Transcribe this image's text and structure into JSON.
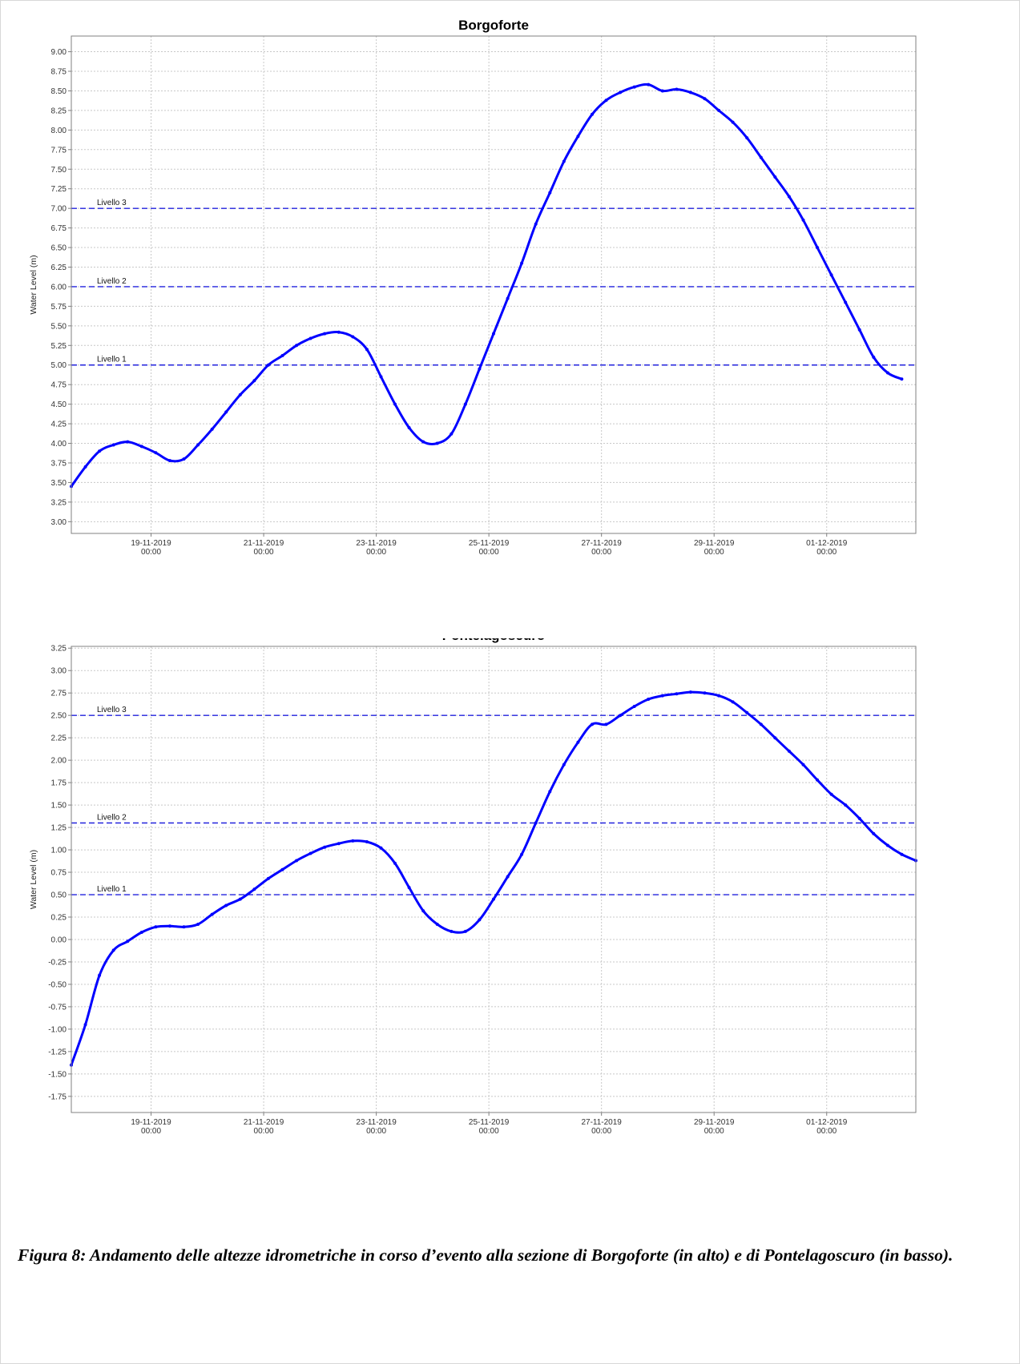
{
  "caption": "Figura 8: Andamento delle altezze idrometriche in corso d’evento alla sezione di Borgoforte (in alto) e di Pontelagoscuro (in basso).",
  "chart_data": [
    {
      "type": "line",
      "title": "Borgoforte",
      "ylabel": "Water Level (m)",
      "xlabel": "",
      "ylim": [
        2.85,
        9.2
      ],
      "yticks": [
        3.0,
        3.25,
        3.5,
        3.75,
        4.0,
        4.25,
        4.5,
        4.75,
        5.0,
        5.25,
        5.5,
        5.75,
        6.0,
        6.25,
        6.5,
        6.75,
        7.0,
        7.25,
        7.5,
        7.75,
        8.0,
        8.25,
        8.5,
        8.75,
        9.0
      ],
      "ytick_labels": [
        "3.00",
        "3.25",
        "3.50",
        "3.75",
        "4.00",
        "4.25",
        "4.50",
        "4.75",
        "5.00",
        "5.25",
        "5.50",
        "5.75",
        "6.00",
        "6.25",
        "6.50",
        "6.75",
        "7.00",
        "7.25",
        "7.50",
        "7.75",
        "8.00",
        "8.25",
        "8.50",
        "8.75",
        "9.00"
      ],
      "xlim": [
        "2019-11-17T14:00",
        "2019-12-02T14:00"
      ],
      "xticks": [
        "2019-11-19T00:00",
        "2019-11-21T00:00",
        "2019-11-23T00:00",
        "2019-11-25T00:00",
        "2019-11-27T00:00",
        "2019-11-29T00:00",
        "2019-12-01T00:00"
      ],
      "xtick_labels": [
        [
          "19-11-2019",
          "00:00"
        ],
        [
          "21-11-2019",
          "00:00"
        ],
        [
          "23-11-2019",
          "00:00"
        ],
        [
          "25-11-2019",
          "00:00"
        ],
        [
          "27-11-2019",
          "00:00"
        ],
        [
          "29-11-2019",
          "00:00"
        ],
        [
          "01-12-2019",
          "00:00"
        ]
      ],
      "grid": true,
      "thresholds": [
        {
          "label": "Livello 1",
          "value": 5.0
        },
        {
          "label": "Livello 2",
          "value": 6.0
        },
        {
          "label": "Livello 3",
          "value": 7.0
        }
      ],
      "series": [
        {
          "color": "#0000ff",
          "points": [
            [
              "2019-11-17T14:00",
              3.45
            ],
            [
              "2019-11-17T20:00",
              3.7
            ],
            [
              "2019-11-18T02:00",
              3.9
            ],
            [
              "2019-11-18T08:00",
              3.98
            ],
            [
              "2019-11-18T14:00",
              4.02
            ],
            [
              "2019-11-18T20:00",
              3.96
            ],
            [
              "2019-11-19T02:00",
              3.88
            ],
            [
              "2019-11-19T08:00",
              3.78
            ],
            [
              "2019-11-19T14:00",
              3.8
            ],
            [
              "2019-11-19T20:00",
              3.98
            ],
            [
              "2019-11-20T02:00",
              4.18
            ],
            [
              "2019-11-20T08:00",
              4.4
            ],
            [
              "2019-11-20T14:00",
              4.62
            ],
            [
              "2019-11-20T20:00",
              4.8
            ],
            [
              "2019-11-21T02:00",
              5.0
            ],
            [
              "2019-11-21T08:00",
              5.12
            ],
            [
              "2019-11-21T14:00",
              5.25
            ],
            [
              "2019-11-21T20:00",
              5.34
            ],
            [
              "2019-11-22T02:00",
              5.4
            ],
            [
              "2019-11-22T08:00",
              5.42
            ],
            [
              "2019-11-22T14:00",
              5.36
            ],
            [
              "2019-11-22T20:00",
              5.2
            ],
            [
              "2019-11-23T02:00",
              4.85
            ],
            [
              "2019-11-23T08:00",
              4.5
            ],
            [
              "2019-11-23T14:00",
              4.2
            ],
            [
              "2019-11-23T20:00",
              4.02
            ],
            [
              "2019-11-24T02:00",
              4.0
            ],
            [
              "2019-11-24T08:00",
              4.12
            ],
            [
              "2019-11-24T14:00",
              4.5
            ],
            [
              "2019-11-24T20:00",
              4.95
            ],
            [
              "2019-11-25T02:00",
              5.4
            ],
            [
              "2019-11-25T08:00",
              5.85
            ],
            [
              "2019-11-25T14:00",
              6.3
            ],
            [
              "2019-11-25T20:00",
              6.8
            ],
            [
              "2019-11-26T02:00",
              7.2
            ],
            [
              "2019-11-26T08:00",
              7.6
            ],
            [
              "2019-11-26T14:00",
              7.92
            ],
            [
              "2019-11-26T20:00",
              8.2
            ],
            [
              "2019-11-27T02:00",
              8.38
            ],
            [
              "2019-11-27T08:00",
              8.48
            ],
            [
              "2019-11-27T14:00",
              8.55
            ],
            [
              "2019-11-27T20:00",
              8.58
            ],
            [
              "2019-11-28T02:00",
              8.5
            ],
            [
              "2019-11-28T08:00",
              8.52
            ],
            [
              "2019-11-28T14:00",
              8.48
            ],
            [
              "2019-11-28T20:00",
              8.4
            ],
            [
              "2019-11-29T02:00",
              8.25
            ],
            [
              "2019-11-29T08:00",
              8.1
            ],
            [
              "2019-11-29T14:00",
              7.9
            ],
            [
              "2019-11-29T20:00",
              7.65
            ],
            [
              "2019-11-30T02:00",
              7.4
            ],
            [
              "2019-11-30T08:00",
              7.15
            ],
            [
              "2019-11-30T14:00",
              6.85
            ],
            [
              "2019-11-30T20:00",
              6.5
            ],
            [
              "2019-12-01T02:00",
              6.15
            ],
            [
              "2019-12-01T08:00",
              5.8
            ],
            [
              "2019-12-01T14:00",
              5.45
            ],
            [
              "2019-12-01T20:00",
              5.1
            ],
            [
              "2019-12-02T02:00",
              4.9
            ],
            [
              "2019-12-02T08:00",
              4.82
            ]
          ]
        }
      ]
    },
    {
      "type": "line",
      "title": "Pontelagoscuro",
      "ylabel": "Water Level (m)",
      "xlabel": "",
      "ylim": [
        -1.93,
        3.27
      ],
      "yticks": [
        -1.75,
        -1.5,
        -1.25,
        -1.0,
        -0.75,
        -0.5,
        -0.25,
        0.0,
        0.25,
        0.5,
        0.75,
        1.0,
        1.25,
        1.5,
        1.75,
        2.0,
        2.25,
        2.5,
        2.75,
        3.0,
        3.25
      ],
      "ytick_labels": [
        "-1.75",
        "-1.50",
        "-1.25",
        "-1.00",
        "-0.75",
        "-0.50",
        "-0.25",
        "0.00",
        "0.25",
        "0.50",
        "0.75",
        "1.00",
        "1.25",
        "1.50",
        "1.75",
        "2.00",
        "2.25",
        "2.50",
        "2.75",
        "3.00",
        "3.25"
      ],
      "xlim": [
        "2019-11-17T14:00",
        "2019-12-02T14:00"
      ],
      "xticks": [
        "2019-11-19T00:00",
        "2019-11-21T00:00",
        "2019-11-23T00:00",
        "2019-11-25T00:00",
        "2019-11-27T00:00",
        "2019-11-29T00:00",
        "2019-12-01T00:00"
      ],
      "xtick_labels": [
        [
          "19-11-2019",
          "00:00"
        ],
        [
          "21-11-2019",
          "00:00"
        ],
        [
          "23-11-2019",
          "00:00"
        ],
        [
          "25-11-2019",
          "00:00"
        ],
        [
          "27-11-2019",
          "00:00"
        ],
        [
          "29-11-2019",
          "00:00"
        ],
        [
          "01-12-2019",
          "00:00"
        ]
      ],
      "grid": true,
      "thresholds": [
        {
          "label": "Livello 1",
          "value": 0.5
        },
        {
          "label": "Livello 2",
          "value": 1.3
        },
        {
          "label": "Livello 3",
          "value": 2.5
        }
      ],
      "series": [
        {
          "color": "#0000ff",
          "points": [
            [
              "2019-11-17T14:00",
              -1.4
            ],
            [
              "2019-11-17T20:00",
              -0.95
            ],
            [
              "2019-11-18T02:00",
              -0.4
            ],
            [
              "2019-11-18T08:00",
              -0.12
            ],
            [
              "2019-11-18T14:00",
              -0.02
            ],
            [
              "2019-11-18T20:00",
              0.08
            ],
            [
              "2019-11-19T02:00",
              0.14
            ],
            [
              "2019-11-19T08:00",
              0.15
            ],
            [
              "2019-11-19T14:00",
              0.14
            ],
            [
              "2019-11-19T20:00",
              0.17
            ],
            [
              "2019-11-20T02:00",
              0.28
            ],
            [
              "2019-11-20T08:00",
              0.38
            ],
            [
              "2019-11-20T14:00",
              0.45
            ],
            [
              "2019-11-20T20:00",
              0.56
            ],
            [
              "2019-11-21T02:00",
              0.68
            ],
            [
              "2019-11-21T08:00",
              0.78
            ],
            [
              "2019-11-21T14:00",
              0.88
            ],
            [
              "2019-11-21T20:00",
              0.96
            ],
            [
              "2019-11-22T02:00",
              1.03
            ],
            [
              "2019-11-22T08:00",
              1.07
            ],
            [
              "2019-11-22T14:00",
              1.1
            ],
            [
              "2019-11-22T20:00",
              1.09
            ],
            [
              "2019-11-23T02:00",
              1.02
            ],
            [
              "2019-11-23T08:00",
              0.85
            ],
            [
              "2019-11-23T14:00",
              0.58
            ],
            [
              "2019-11-23T20:00",
              0.32
            ],
            [
              "2019-11-24T02:00",
              0.17
            ],
            [
              "2019-11-24T08:00",
              0.09
            ],
            [
              "2019-11-24T14:00",
              0.09
            ],
            [
              "2019-11-24T20:00",
              0.22
            ],
            [
              "2019-11-25T02:00",
              0.45
            ],
            [
              "2019-11-25T08:00",
              0.7
            ],
            [
              "2019-11-25T14:00",
              0.95
            ],
            [
              "2019-11-25T20:00",
              1.3
            ],
            [
              "2019-11-26T02:00",
              1.65
            ],
            [
              "2019-11-26T08:00",
              1.95
            ],
            [
              "2019-11-26T14:00",
              2.2
            ],
            [
              "2019-11-26T20:00",
              2.4
            ],
            [
              "2019-11-27T02:00",
              2.4
            ],
            [
              "2019-11-27T08:00",
              2.5
            ],
            [
              "2019-11-27T14:00",
              2.6
            ],
            [
              "2019-11-27T20:00",
              2.68
            ],
            [
              "2019-11-28T02:00",
              2.72
            ],
            [
              "2019-11-28T08:00",
              2.74
            ],
            [
              "2019-11-28T14:00",
              2.76
            ],
            [
              "2019-11-28T20:00",
              2.75
            ],
            [
              "2019-11-29T02:00",
              2.72
            ],
            [
              "2019-11-29T08:00",
              2.65
            ],
            [
              "2019-11-29T14:00",
              2.53
            ],
            [
              "2019-11-29T20:00",
              2.4
            ],
            [
              "2019-11-30T02:00",
              2.25
            ],
            [
              "2019-11-30T08:00",
              2.1
            ],
            [
              "2019-11-30T14:00",
              1.95
            ],
            [
              "2019-11-30T20:00",
              1.78
            ],
            [
              "2019-12-01T02:00",
              1.62
            ],
            [
              "2019-12-01T08:00",
              1.5
            ],
            [
              "2019-12-01T14:00",
              1.35
            ],
            [
              "2019-12-01T20:00",
              1.18
            ],
            [
              "2019-12-02T02:00",
              1.05
            ],
            [
              "2019-12-02T08:00",
              0.95
            ],
            [
              "2019-12-02T14:00",
              0.88
            ]
          ]
        }
      ]
    }
  ]
}
